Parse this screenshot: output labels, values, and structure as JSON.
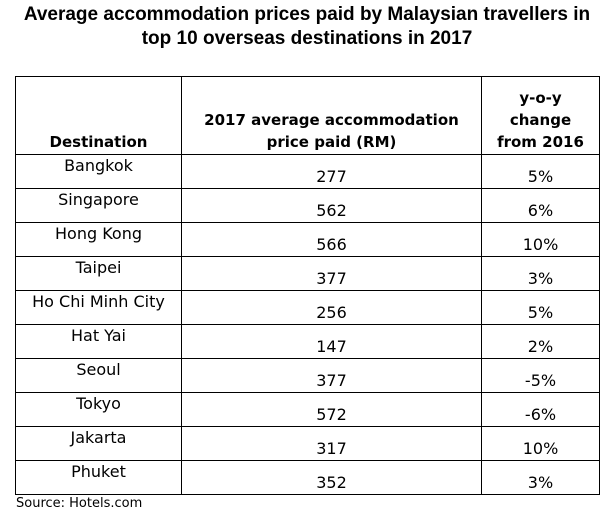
{
  "chart_data": {
    "type": "table",
    "title_lines": [
      "Average accommodation prices paid by Malaysian travellers in",
      "top 10 overseas destinations in 2017"
    ],
    "columns": [
      "Destination",
      "2017 average accommodation price paid (RM)",
      "y-o-y change from 2016"
    ],
    "header_lines": {
      "destination": [
        "Destination"
      ],
      "price": [
        "2017 average accommodation",
        "price paid (RM)"
      ],
      "change": [
        "y-o-y",
        "change",
        "from 2016"
      ]
    },
    "rows": [
      {
        "destination": "Bangkok",
        "price": "277",
        "change": "5%"
      },
      {
        "destination": "Singapore",
        "price": "562",
        "change": "6%"
      },
      {
        "destination": "Hong Kong",
        "price": "566",
        "change": "10%"
      },
      {
        "destination": "Taipei",
        "price": "377",
        "change": "3%"
      },
      {
        "destination": "Ho Chi Minh City",
        "price": "256",
        "change": "5%"
      },
      {
        "destination": "Hat Yai",
        "price": "147",
        "change": "2%"
      },
      {
        "destination": "Seoul",
        "price": "377",
        "change": "-5%"
      },
      {
        "destination": "Tokyo",
        "price": "572",
        "change": "-6%"
      },
      {
        "destination": "Jakarta",
        "price": "317",
        "change": "10%"
      },
      {
        "destination": "Phuket",
        "price": "352",
        "change": "3%"
      }
    ],
    "source": "Source: Hotels.com"
  }
}
